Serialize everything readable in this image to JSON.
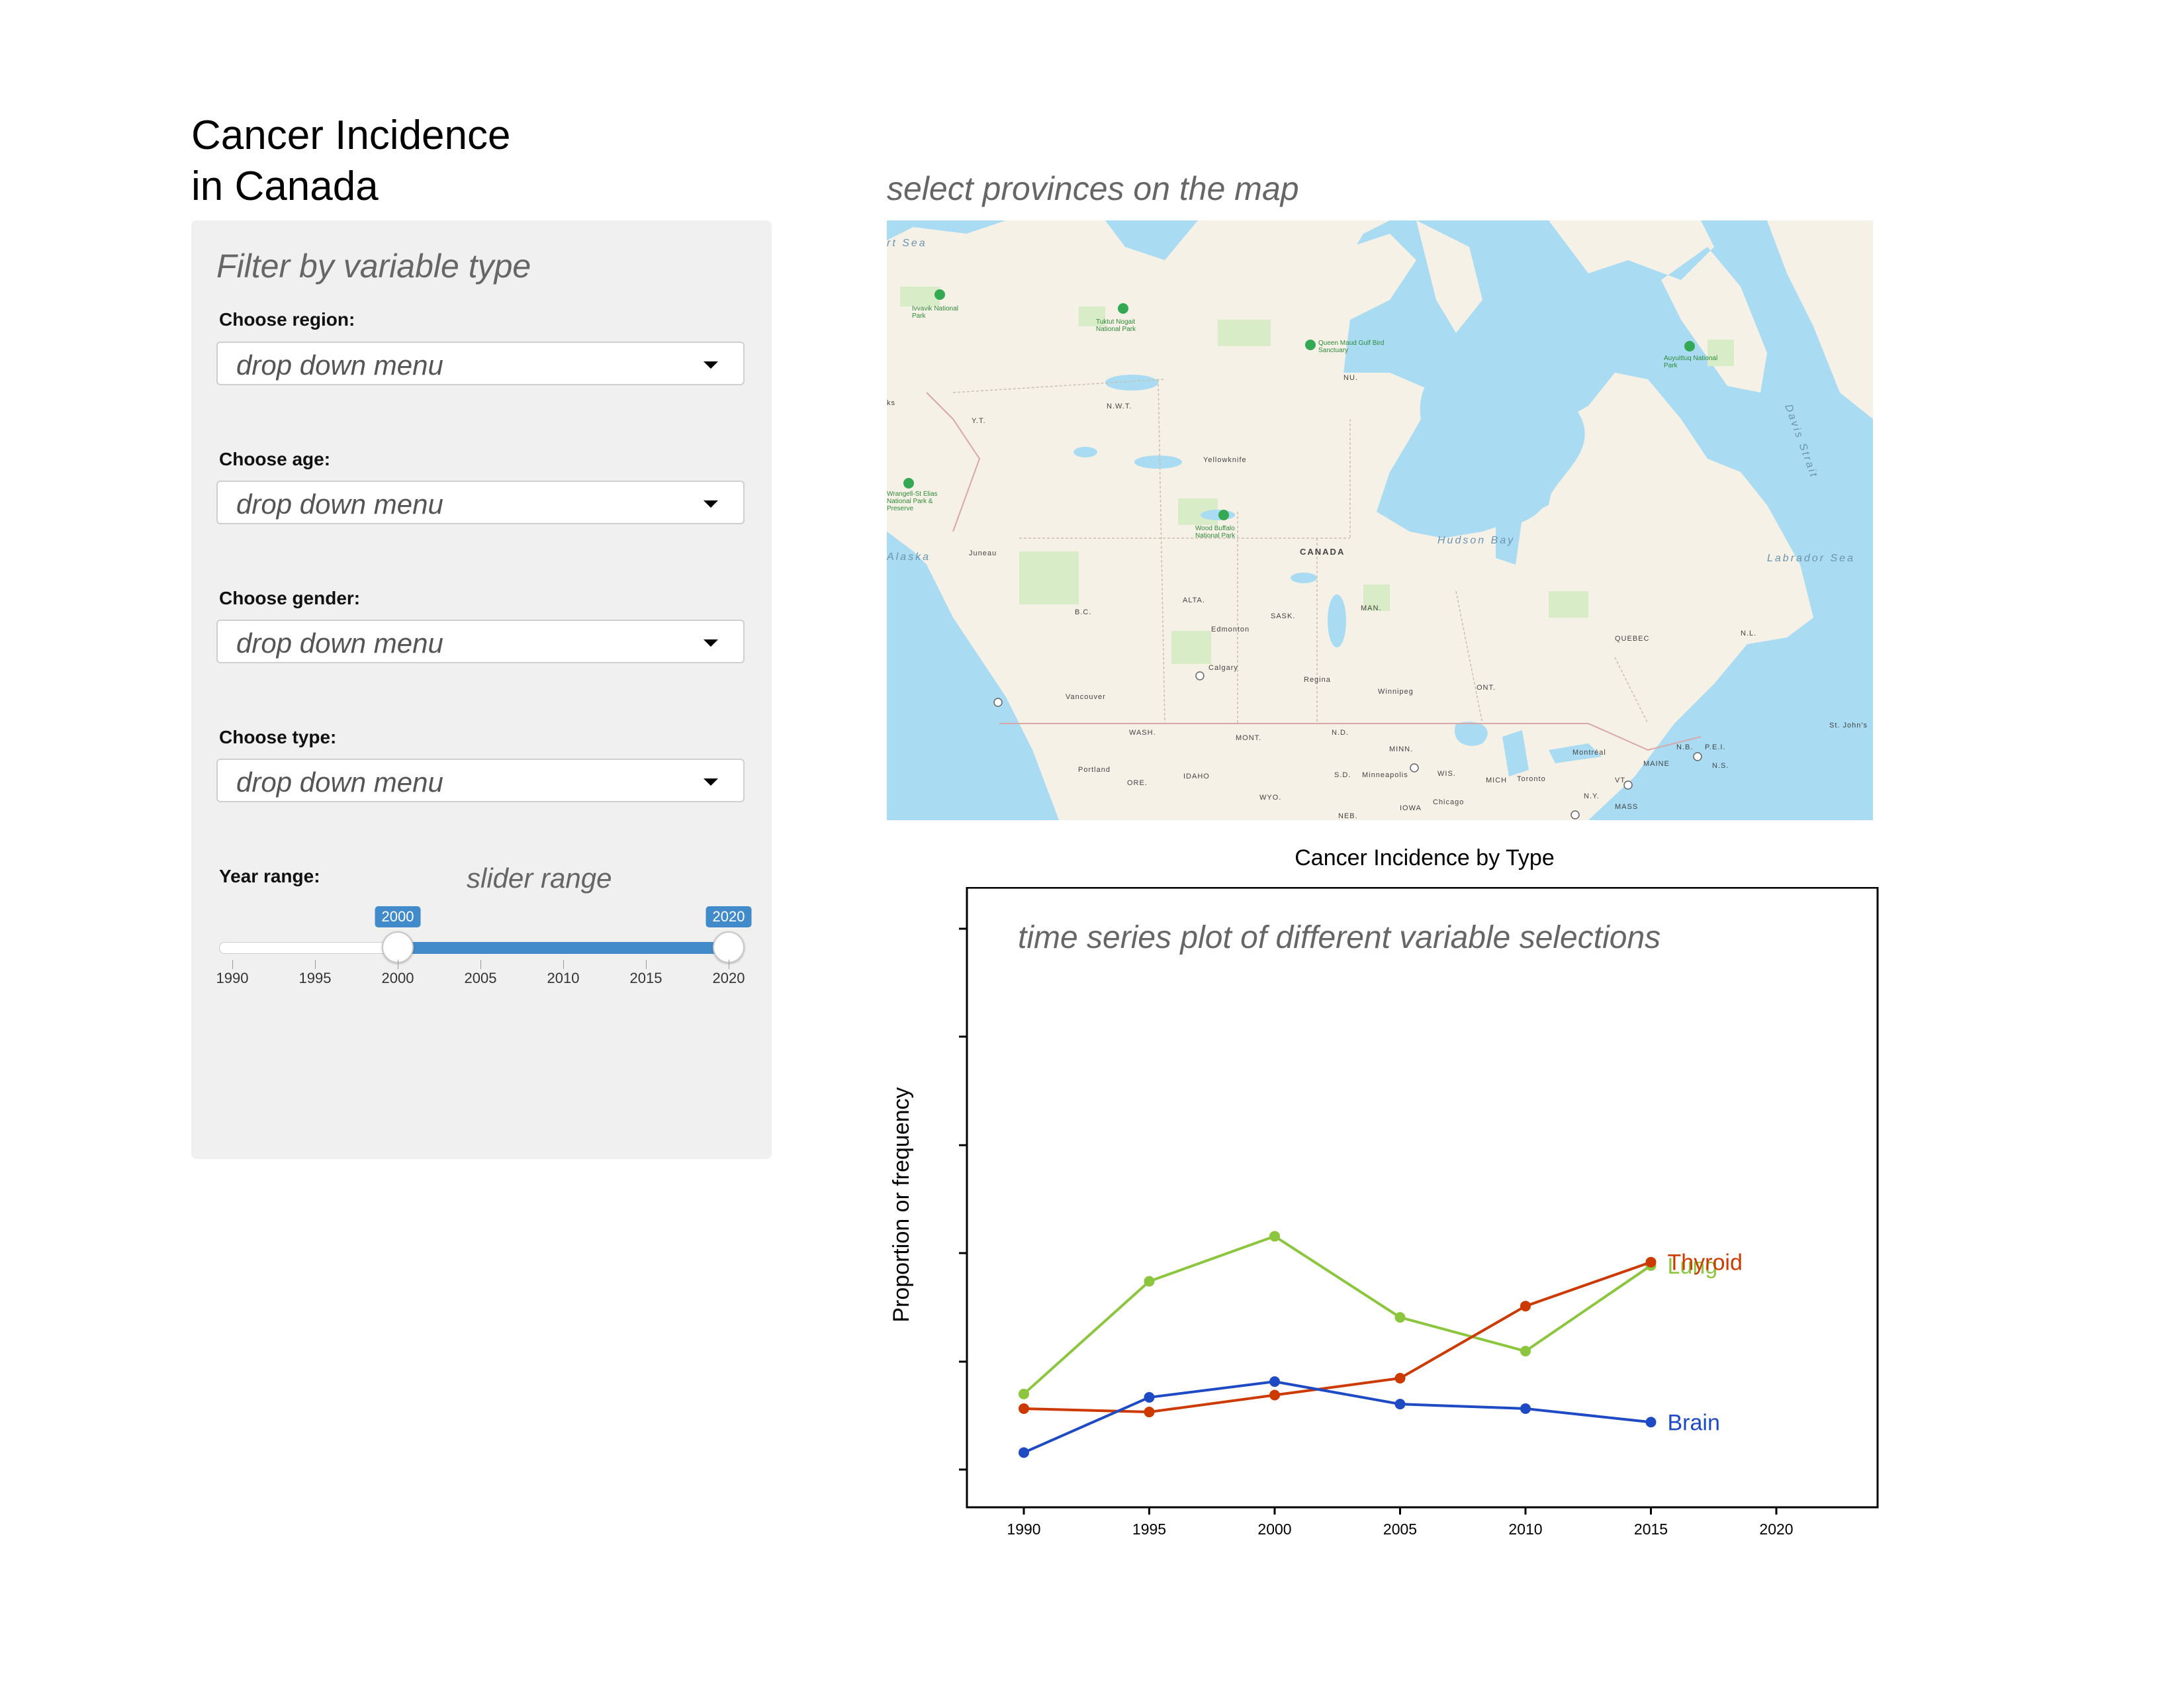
{
  "app": {
    "title_line1": "Cancer Incidence",
    "title_line2": "in Canada"
  },
  "sidebar": {
    "heading": "Filter by variable type",
    "controls": [
      {
        "label": "Choose region:",
        "value": "drop down menu"
      },
      {
        "label": "Choose age:",
        "value": "drop down menu"
      },
      {
        "label": "Choose gender:",
        "value": "drop down menu"
      },
      {
        "label": "Choose type:",
        "value": "drop down menu"
      }
    ],
    "year_range": {
      "label": "Year range:",
      "note": "slider range",
      "min": 1990,
      "max": 2020,
      "selected": [
        2000,
        2020
      ],
      "ticks": [
        "1990",
        "1995",
        "2000",
        "2005",
        "2010",
        "2015",
        "2020"
      ],
      "bubble_low": "2000",
      "bubble_high": "2020",
      "fill_color": "#428bca"
    }
  },
  "map": {
    "caption": "select provinces on the map",
    "labels": {
      "canada": "CANADA",
      "yt": "Y.T.",
      "nwt": "N.W.T.",
      "nu": "NU.",
      "bc": "B.C.",
      "alta": "ALTA.",
      "sask": "SASK.",
      "man": "MAN.",
      "ont": "ONT.",
      "quebec": "QUEBEC",
      "nl": "N.L.",
      "nb": "N.B.",
      "pei": "P.E.I.",
      "ns": "N.S.",
      "wash": "WASH.",
      "ore": "ORE.",
      "idaho": "IDAHO",
      "mont": "MONT.",
      "wyo": "WYO.",
      "nd": "N.D.",
      "sd": "S.D.",
      "neb": "NEB.",
      "minn": "MINN.",
      "iowa": "IOWA",
      "wis": "WIS.",
      "mich": "MICH",
      "ny": "N.Y.",
      "vt": "VT.",
      "maine": "MAINE",
      "mass": "MASS",
      "hudson": "Hudson Bay",
      "labrador": "Labrador Sea",
      "alaska": "Alaska",
      "davis": "Davis Strait",
      "sea": "rt Sea",
      "yellowknife": "Yellowknife",
      "edmonton": "Edmonton",
      "calgary": "Calgary",
      "regina": "Regina",
      "winnipeg": "Winnipeg",
      "vancouver": "Vancouver",
      "portland": "Portland",
      "minneapolis": "Minneapolis",
      "chicago": "Chicago",
      "toronto": "Toronto",
      "montreal": "Montréal",
      "stjohns": "St. John's",
      "juneau": "Juneau",
      "ivvavik": "Ivvavik National Park",
      "tuktut": "Tuktut Nogait National Park",
      "queenmaud": "Queen Maud Gulf Bird Sanctuary",
      "auyuittuq": "Auyuittuq National Park",
      "woodbuffalo": "Wood Buffalo National Park",
      "wrangell": "Wrangell-St Elias National Park & Preserve",
      "ks": "ks"
    }
  },
  "chart_data": {
    "type": "line",
    "title": "Cancer Incidence by Type",
    "annotation": "time series plot of different variable selections",
    "ylabel": "Proportion or frequency",
    "xlabel": "",
    "x": [
      1990,
      1995,
      2000,
      2005,
      2010,
      2015
    ],
    "xticks": [
      "1990",
      "1995",
      "2000",
      "2005",
      "2010",
      "2015",
      "2020"
    ],
    "xlim": [
      1990,
      2020
    ],
    "ylim": [
      0,
      5.5
    ],
    "series": [
      {
        "name": "Lung",
        "color": "#8cc63f",
        "values": [
          1.0,
          2.0,
          2.4,
          1.68,
          1.38,
          2.14
        ]
      },
      {
        "name": "Thyroid",
        "color": "#cc3a00",
        "values": [
          0.87,
          0.84,
          0.99,
          1.14,
          1.78,
          2.17
        ]
      },
      {
        "name": "Brain",
        "color": "#1e4bc4",
        "values": [
          0.48,
          0.97,
          1.11,
          0.91,
          0.87,
          0.75
        ]
      }
    ]
  }
}
